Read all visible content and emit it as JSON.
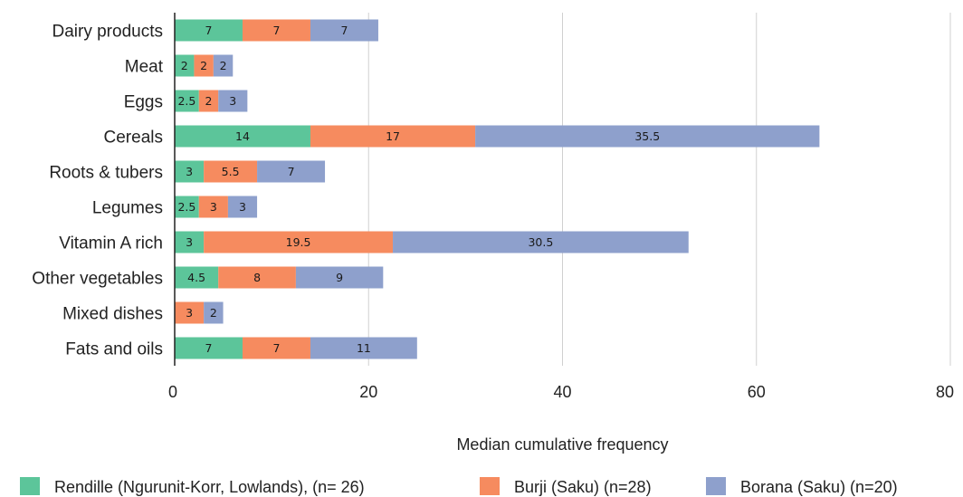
{
  "chart_data": {
    "type": "bar",
    "orientation": "horizontal",
    "stacked": true,
    "categories": [
      "Dairy products",
      "Meat",
      "Eggs",
      "Cereals",
      "Roots & tubers",
      "Legumes",
      "Vitamin A rich",
      "Other vegetables",
      "Mixed dishes",
      "Fats and oils"
    ],
    "series": [
      {
        "name": "Rendille (Ngurunit-Korr, Lowlands), (n= 26)",
        "color": "#5cc59a",
        "values": [
          7,
          2,
          2.5,
          14,
          3,
          2.5,
          3,
          4.5,
          0,
          7
        ]
      },
      {
        "name": "Burji (Saku) (n=28)",
        "color": "#f68b5f",
        "values": [
          7,
          2,
          2,
          17,
          5.5,
          3,
          19.5,
          8,
          3,
          7
        ]
      },
      {
        "name": "Borana (Saku) (n=20)",
        "color": "#8ea0cc",
        "values": [
          7,
          2,
          3,
          35.5,
          7,
          3,
          30.5,
          9,
          2,
          11
        ]
      }
    ],
    "title": "",
    "xlabel": "Median cumulative frequency",
    "ylabel": "",
    "xlim": [
      0,
      80
    ],
    "xticks": [
      0,
      20,
      40,
      60,
      80
    ],
    "grid": "vertical",
    "legend_position": "bottom"
  }
}
